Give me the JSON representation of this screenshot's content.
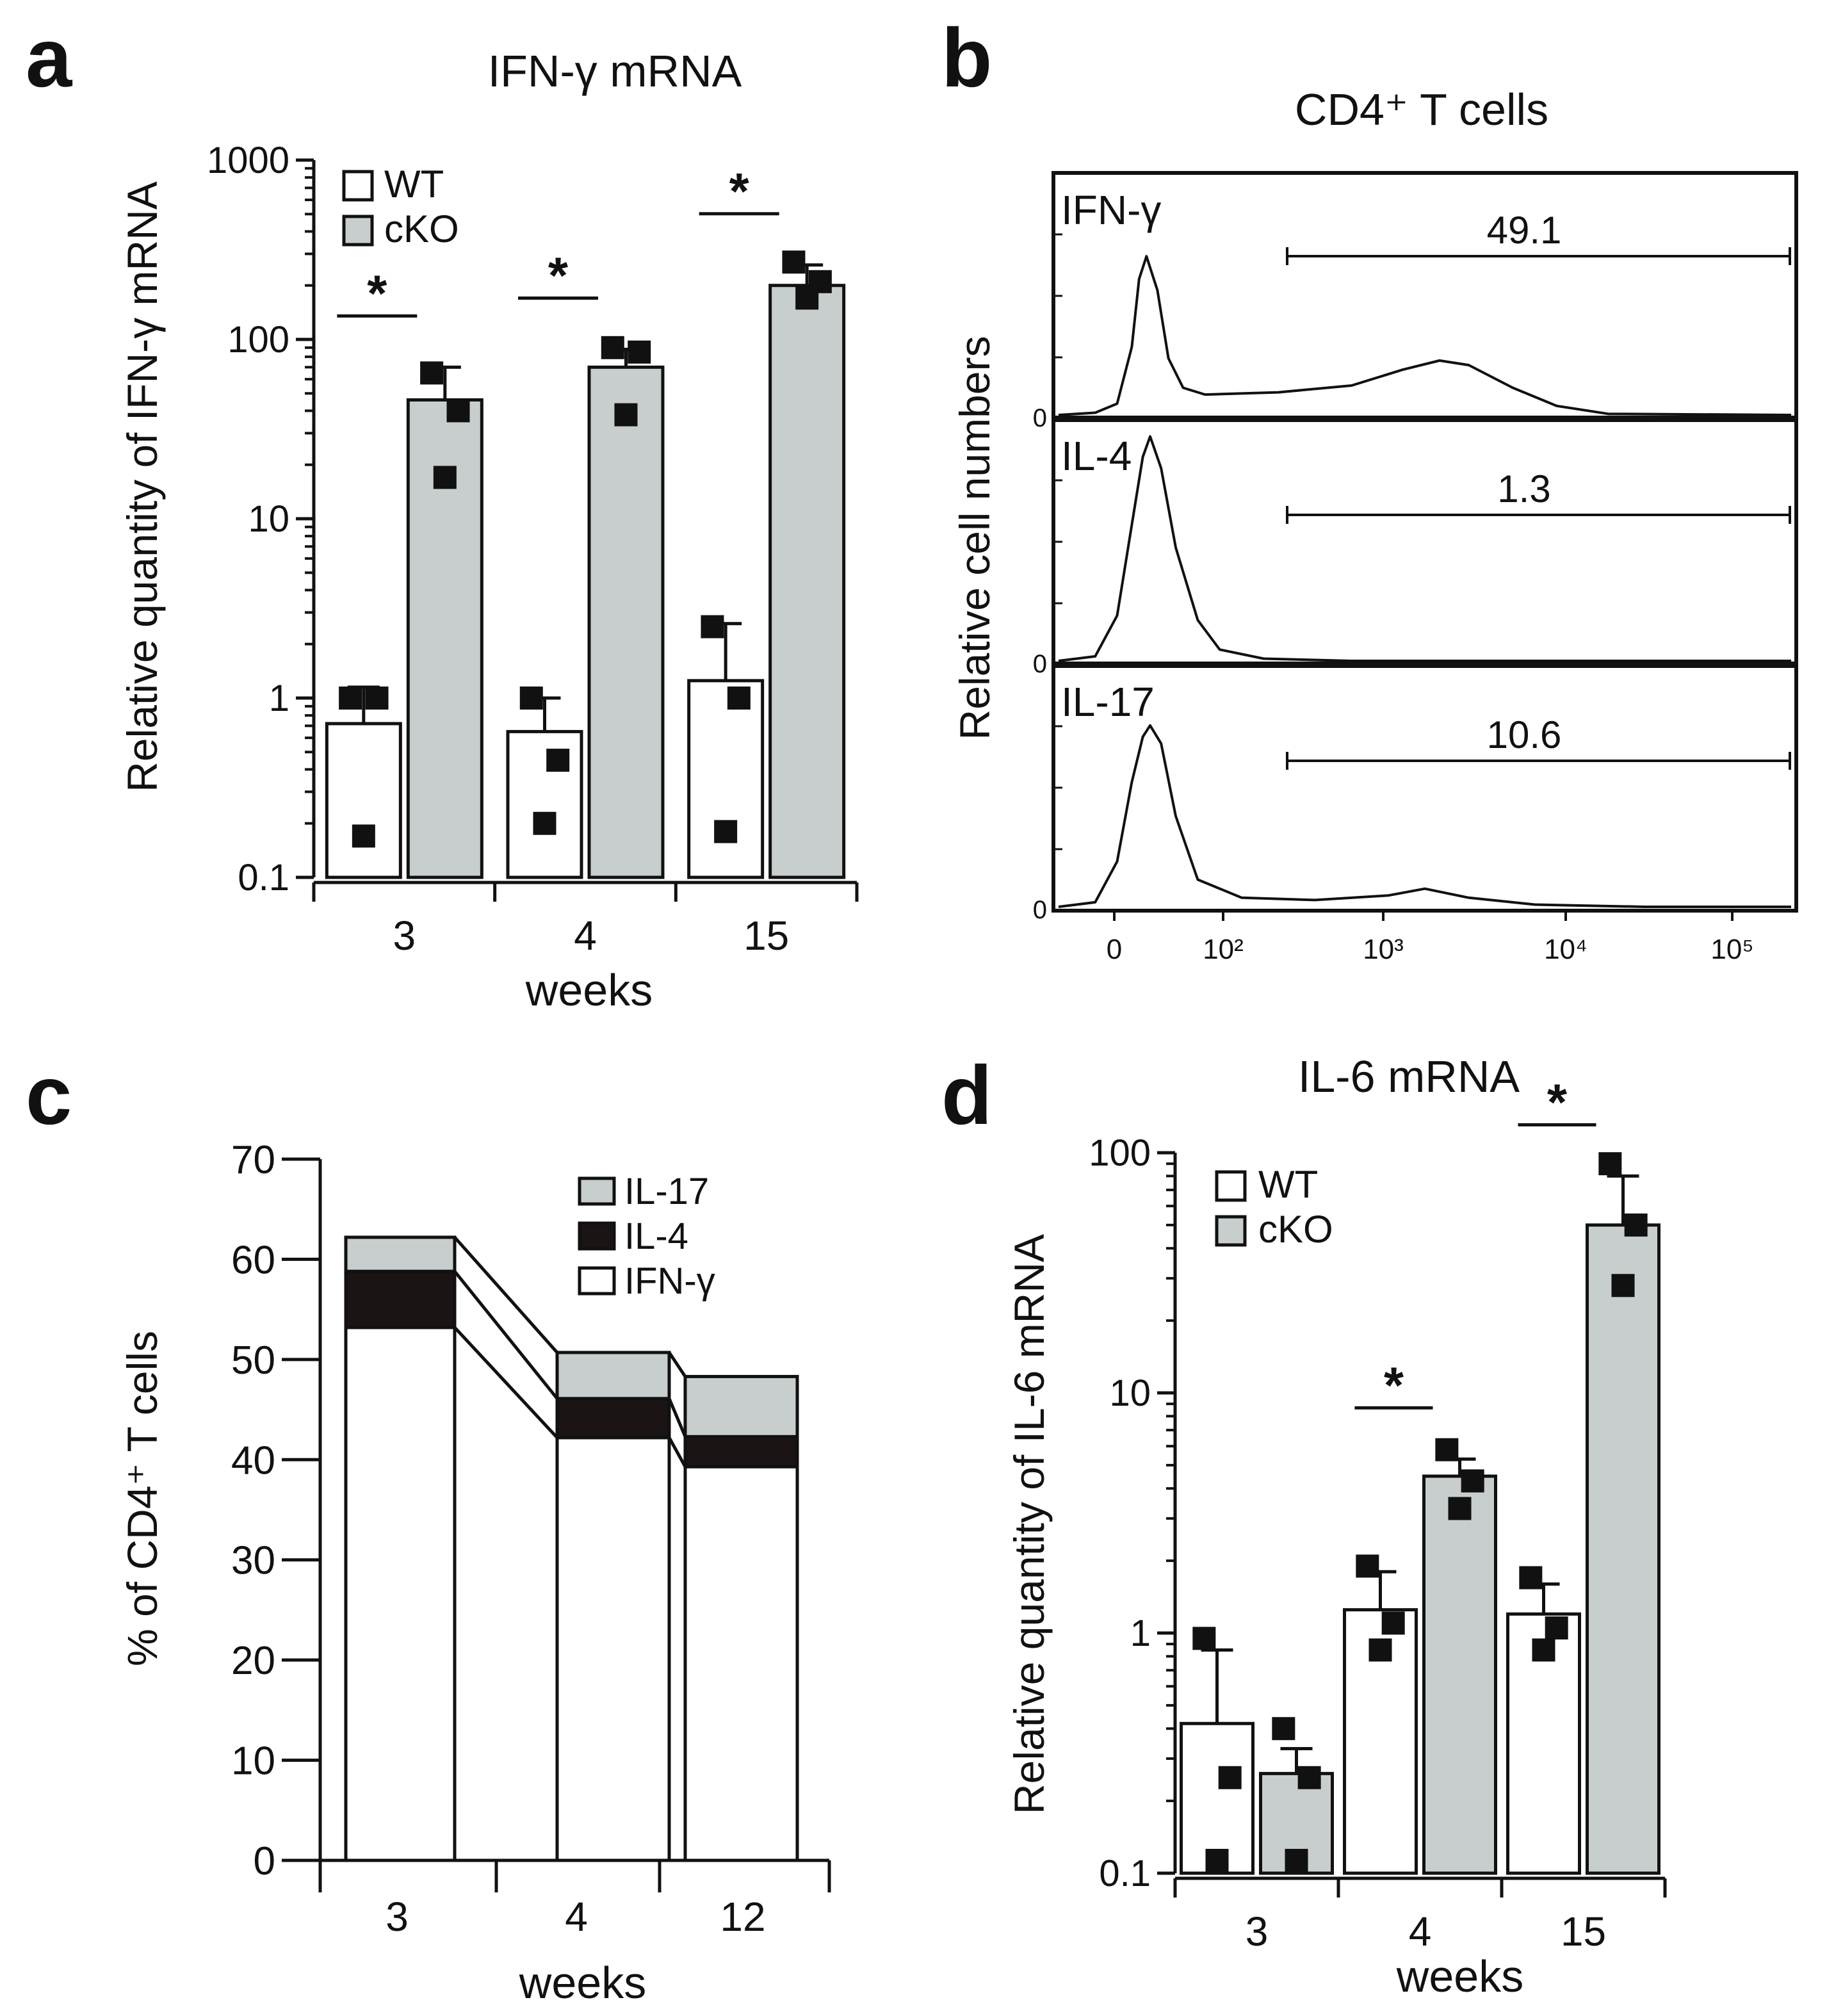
{
  "chart_data": [
    {
      "panel": "a",
      "type": "bar",
      "title": "IFN-γ mRNA",
      "xlabel": "weeks",
      "ylabel": "Relative quantity of IFN-γ mRNA",
      "yscale": "log",
      "ylim": [
        0.1,
        1000
      ],
      "yticks": [
        "0.1",
        "1",
        "10",
        "100",
        "1000"
      ],
      "categories": [
        "3",
        "4",
        "15"
      ],
      "legend": {
        "placement": "top-left",
        "entries": [
          "WT",
          "cKO"
        ]
      },
      "series": [
        {
          "name": "WT",
          "color": "#ffffff",
          "values": [
            0.72,
            0.65,
            1.25
          ],
          "err_upper": [
            1.15,
            1.0,
            2.6
          ],
          "points": [
            [
              1.0,
              1.0,
              0.17
            ],
            [
              1.0,
              0.45,
              0.2
            ],
            [
              2.5,
              1.0,
              0.18
            ]
          ]
        },
        {
          "name": "cKO",
          "color": "#c8cdcd",
          "values": [
            46,
            70,
            200
          ],
          "err_upper": [
            70,
            88,
            260
          ],
          "points": [
            [
              65,
              40,
              17
            ],
            [
              90,
              85,
              38
            ],
            [
              270,
              210,
              170
            ]
          ]
        }
      ],
      "significance": [
        "*",
        "*",
        "*"
      ]
    },
    {
      "panel": "b",
      "type": "line",
      "title": "CD4⁺ T cells",
      "ylabel": "Relative cell numbers",
      "xscale": "logicle",
      "xticks": [
        "0",
        "10²",
        "10³",
        "10⁴",
        "10⁵"
      ],
      "series": [
        {
          "name": "IFN-γ",
          "gate_percent": "49.1",
          "zero_label": "0"
        },
        {
          "name": "IL-4",
          "gate_percent": "1.3",
          "zero_label": "0"
        },
        {
          "name": "IL-17",
          "gate_percent": "10.6",
          "zero_label": "0"
        }
      ]
    },
    {
      "panel": "c",
      "type": "bar",
      "stacked": true,
      "ylabel": "% of CD4⁺ T cells",
      "xlabel": "weeks",
      "ylim": [
        0,
        70
      ],
      "yticks": [
        "0",
        "10",
        "20",
        "30",
        "40",
        "50",
        "60",
        "70"
      ],
      "categories": [
        "3",
        "4",
        "12"
      ],
      "legend": {
        "placement": "top-right",
        "entries": [
          "IL-17",
          "IL-4",
          "IFN-γ"
        ]
      },
      "series": [
        {
          "name": "IFN-γ",
          "color": "#ffffff",
          "values": [
            53.2,
            42.2,
            39.3
          ]
        },
        {
          "name": "IL-4",
          "color": "#1a1414",
          "values": [
            5.6,
            3.9,
            3.0
          ]
        },
        {
          "name": "IL-17",
          "color": "#c8cdcd",
          "values": [
            3.4,
            4.6,
            6.0
          ]
        }
      ]
    },
    {
      "panel": "d",
      "type": "bar",
      "title": "IL-6 mRNA",
      "xlabel": "weeks",
      "ylabel": "Relative quantity of IL-6 mRNA",
      "yscale": "log",
      "ylim": [
        0.1,
        100
      ],
      "yticks": [
        "0.1",
        "1",
        "10",
        "100"
      ],
      "categories": [
        "3",
        "4",
        "15"
      ],
      "legend": {
        "placement": "top-left",
        "entries": [
          "WT",
          "cKO"
        ]
      },
      "series": [
        {
          "name": "WT",
          "color": "#ffffff",
          "values": [
            0.42,
            1.25,
            1.2
          ],
          "err_upper": [
            0.85,
            1.8,
            1.6
          ],
          "points": [
            [
              0.95,
              0.25,
              0.1
            ],
            [
              1.9,
              1.1,
              0.85
            ],
            [
              1.7,
              1.05,
              0.85
            ]
          ]
        },
        {
          "name": "cKO",
          "color": "#c8cdcd",
          "values": [
            0.26,
            4.5,
            50
          ],
          "err_upper": [
            0.33,
            5.3,
            80
          ],
          "points": [
            [
              0.4,
              0.25,
              0.1
            ],
            [
              5.8,
              4.3,
              3.3
            ],
            [
              90,
              50,
              28
            ]
          ]
        }
      ],
      "significance": [
        "",
        "*",
        "*"
      ]
    }
  ],
  "panel_letters": [
    "a",
    "b",
    "c",
    "d"
  ]
}
